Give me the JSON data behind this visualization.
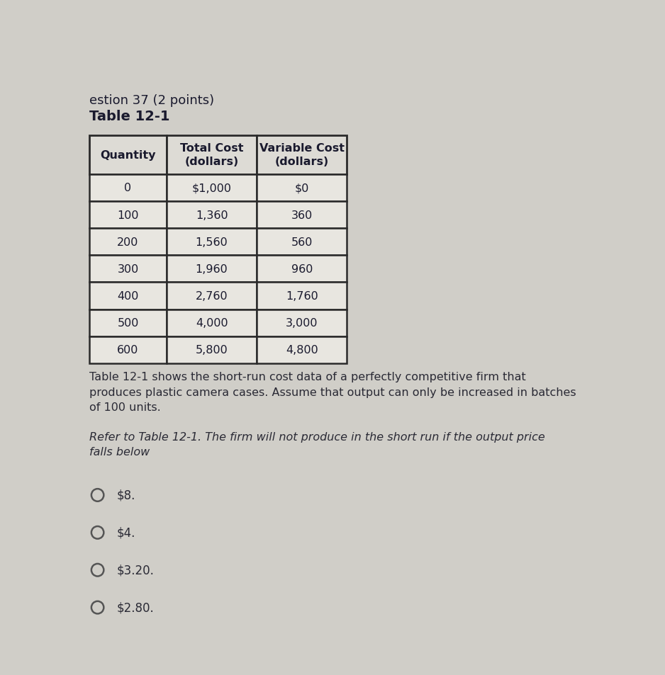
{
  "title_line1": "estion 37 (2 points)",
  "title_line2": "Table 12-1",
  "table_headers": [
    "Quantity",
    "Total Cost\n(dollars)",
    "Variable Cost\n(dollars)"
  ],
  "table_data": [
    [
      "0",
      "$1,000",
      "$0"
    ],
    [
      "100",
      "1,360",
      "360"
    ],
    [
      "200",
      "1,560",
      "560"
    ],
    [
      "300",
      "1,960",
      "960"
    ],
    [
      "400",
      "2,760",
      "1,760"
    ],
    [
      "500",
      "4,000",
      "3,000"
    ],
    [
      "600",
      "5,800",
      "4,800"
    ]
  ],
  "description": "Table 12-1 shows the short-run cost data of a perfectly competitive firm that\nproduces plastic camera cases. Assume that output can only be increased in batches\nof 100 units.",
  "question": "Refer to Table 12-1. The firm will not produce in the short run if the output price\nfalls below",
  "choices": [
    "$8.",
    "$4.",
    "$3.20.",
    "$2.80."
  ],
  "bg_color": "#d0cec8",
  "cell_color": "#e8e6e0",
  "header_cell_color": "#dddbd5",
  "text_color": "#1a1a2e",
  "border_color": "#2a2a2a",
  "title1_color": "#1a1a2e",
  "title2_color": "#1a1a2e",
  "desc_color": "#2a2a35",
  "question_color": "#2a2a35",
  "choice_color": "#2a2a35"
}
